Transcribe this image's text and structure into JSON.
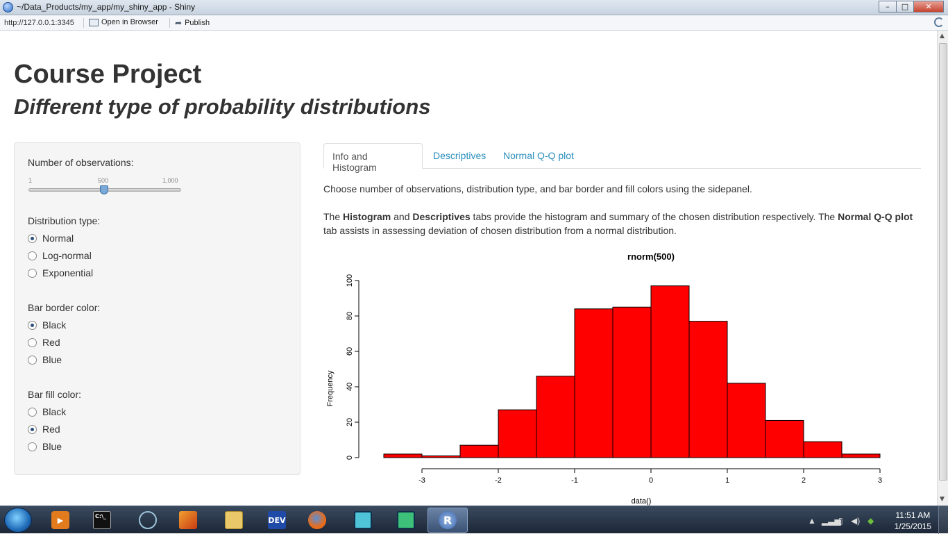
{
  "window": {
    "title": "~/Data_Products/my_app/my_shiny_app - Shiny",
    "minimize": "–",
    "maximize": "□",
    "close": "✕"
  },
  "toolbar": {
    "url": "http://127.0.0.1:3345",
    "open_browser": "Open in Browser",
    "publish": "Publish"
  },
  "page": {
    "title": "Course Project",
    "subtitle": "Different type of probability distributions"
  },
  "sidebar": {
    "observations_label": "Number of observations:",
    "slider": {
      "min": "1",
      "value": "500",
      "max": "1,000",
      "fraction": 0.5
    },
    "distribution": {
      "label": "Distribution type:",
      "options": [
        "Normal",
        "Log-normal",
        "Exponential"
      ],
      "selected": "Normal"
    },
    "border_color": {
      "label": "Bar border color:",
      "options": [
        "Black",
        "Red",
        "Blue"
      ],
      "selected": "Black"
    },
    "fill_color": {
      "label": "Bar fill color:",
      "options": [
        "Black",
        "Red",
        "Blue"
      ],
      "selected": "Red"
    }
  },
  "tabs": [
    "Info and Histogram",
    "Descriptives",
    "Normal Q-Q plot"
  ],
  "info": {
    "p1": "Choose number of observations, distribution type, and bar border and fill colors using the sidepanel.",
    "p2_a": "The ",
    "p2_b": "Histogram",
    "p2_c": " and ",
    "p2_d": "Descriptives",
    "p2_e": " tabs provide the histogram and summary of the chosen distribution respectively. The ",
    "p2_f": "Normal Q-Q plot",
    "p2_g": " tab assists in assessing deviation of chosen distribution from a normal distribution."
  },
  "chart_data": {
    "type": "bar",
    "title": "rnorm(500)",
    "xlabel": "data()",
    "ylabel": "Frequency",
    "bin_edges": [
      -3.5,
      -3,
      -2.5,
      -2,
      -1.5,
      -1,
      -0.5,
      0,
      0.5,
      1,
      1.5,
      2,
      2.5,
      3
    ],
    "values": [
      2,
      1,
      7,
      27,
      46,
      84,
      85,
      97,
      77,
      42,
      21,
      9,
      2
    ],
    "xticks": [
      -3,
      -2,
      -1,
      0,
      1,
      2,
      3
    ],
    "yticks": [
      0,
      20,
      40,
      60,
      80,
      100
    ],
    "xlim": [
      -3.5,
      3
    ],
    "ylim": [
      0,
      100
    ],
    "fill": "#ff0000",
    "border": "#000000"
  },
  "taskbar": {
    "apps": [
      "media-player-icon",
      "terminal-icon",
      "network-icon",
      "matlab-icon",
      "explorer-icon",
      "devcpp-icon",
      "firefox-icon",
      "remote-desktop-icon",
      "monitor-icon",
      "r-icon"
    ],
    "terminal_text": "C:\\_",
    "devcpp_text": "DEV",
    "r_text": "R",
    "time": "11:51 AM",
    "date": "1/25/2015"
  }
}
